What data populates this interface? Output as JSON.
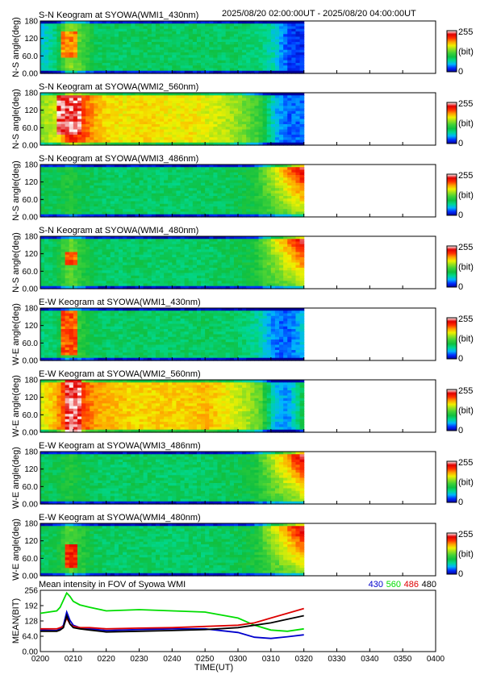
{
  "header": {
    "time_range": "2025/08/20 02:00:00UT - 2025/08/20 04:00:00UT"
  },
  "colors": {
    "colormap": [
      "#0000a0",
      "#0030ff",
      "#00b4ff",
      "#00d890",
      "#10c040",
      "#3ed038",
      "#90e020",
      "#f0f000",
      "#ffa000",
      "#ff3000",
      "#e00000",
      "#ffffff"
    ],
    "line_430": "#0000cc",
    "line_560": "#00dd00",
    "line_486": "#dd0000",
    "line_480": "#000000"
  },
  "chart_data": [
    {
      "type": "heatmap",
      "title": "S-N Keogram at SYOWA(WMI1_430nm)",
      "ylabel": "N-S angle(deg)",
      "yticks": [
        "0.00",
        "60.0",
        "120",
        "180"
      ],
      "ylim": [
        0,
        180
      ],
      "xlim": [
        "02:00",
        "04:00"
      ],
      "data_end": "03:20",
      "colorbar": {
        "max": "255",
        "unit": "(bit)",
        "min": "0"
      },
      "profile": [
        0.22,
        0.3,
        0.55,
        0.45,
        0.33,
        0.33,
        0.32,
        0.34,
        0.33,
        0.33,
        0.32,
        0.33,
        0.33,
        0.32,
        0.33,
        0.31,
        0.3,
        0.24,
        0.1,
        0.08
      ],
      "aurora": [
        {
          "start": "02:06",
          "end": "02:11",
          "lat_min": 50,
          "lat_max": 140,
          "level": 0.8
        }
      ],
      "twilight": 0
    },
    {
      "type": "heatmap",
      "title": "S-N Keogram at SYOWA(WMI2_560nm)",
      "ylabel": "N-S angle(deg)",
      "yticks": [
        "0.00",
        "60.0",
        "120",
        "180"
      ],
      "ylim": [
        0,
        180
      ],
      "xlim": [
        "02:00",
        "04:00"
      ],
      "data_end": "03:20",
      "colorbar": {
        "max": "255",
        "unit": "(bit)",
        "min": "0"
      },
      "profile": [
        0.55,
        0.6,
        0.85,
        0.8,
        0.7,
        0.66,
        0.64,
        0.66,
        0.66,
        0.64,
        0.64,
        0.65,
        0.62,
        0.6,
        0.56,
        0.5,
        0.42,
        0.2,
        0.12,
        0.14
      ],
      "aurora": [
        {
          "start": "02:05",
          "end": "02:13",
          "lat_min": 40,
          "lat_max": 170,
          "level": 1.0
        }
      ],
      "twilight": 0
    },
    {
      "type": "heatmap",
      "title": "S-N Keogram at SYOWA(WMI3_486nm)",
      "ylabel": "N-S angle(deg)",
      "yticks": [
        "0.00",
        "60.0",
        "120",
        "180"
      ],
      "ylim": [
        0,
        180
      ],
      "xlim": [
        "02:00",
        "04:00"
      ],
      "data_end": "03:20",
      "colorbar": {
        "max": "255",
        "unit": "(bit)",
        "min": "0"
      },
      "profile": [
        0.34,
        0.34,
        0.4,
        0.35,
        0.33,
        0.32,
        0.32,
        0.33,
        0.32,
        0.32,
        0.32,
        0.32,
        0.33,
        0.33,
        0.34,
        0.36,
        0.4,
        0.44,
        0.48,
        0.52
      ],
      "aurora": [],
      "twilight": 1
    },
    {
      "type": "heatmap",
      "title": "S-N Keogram at SYOWA(WMI4_480nm)",
      "ylabel": "N-S angle(deg)",
      "yticks": [
        "0.00",
        "60.0",
        "120",
        "180"
      ],
      "ylim": [
        0,
        180
      ],
      "xlim": [
        "02:00",
        "04:00"
      ],
      "data_end": "03:20",
      "colorbar": {
        "max": "255",
        "unit": "(bit)",
        "min": "0"
      },
      "profile": [
        0.32,
        0.34,
        0.5,
        0.4,
        0.33,
        0.32,
        0.32,
        0.33,
        0.32,
        0.32,
        0.32,
        0.32,
        0.32,
        0.33,
        0.34,
        0.36,
        0.4,
        0.44,
        0.48,
        0.52
      ],
      "aurora": [
        {
          "start": "02:07",
          "end": "02:11",
          "lat_min": 80,
          "lat_max": 130,
          "level": 0.85
        }
      ],
      "twilight": 1
    },
    {
      "type": "heatmap",
      "title": "E-W Keogram at SYOWA(WMI1_430nm)",
      "ylabel": "W-E angle(deg)",
      "yticks": [
        "0.00",
        "60.0",
        "120",
        "180"
      ],
      "ylim": [
        0,
        180
      ],
      "xlim": [
        "02:00",
        "04:00"
      ],
      "data_end": "03:20",
      "colorbar": {
        "max": "255",
        "unit": "(bit)",
        "min": "0"
      },
      "profile": [
        0.3,
        0.32,
        0.45,
        0.4,
        0.33,
        0.32,
        0.32,
        0.33,
        0.32,
        0.32,
        0.32,
        0.32,
        0.33,
        0.32,
        0.32,
        0.3,
        0.26,
        0.14,
        0.12,
        0.2
      ],
      "aurora": [
        {
          "start": "02:06",
          "end": "02:11",
          "lat_min": 20,
          "lat_max": 170,
          "level": 0.85
        }
      ],
      "twilight": 0
    },
    {
      "type": "heatmap",
      "title": "E-W Keogram at SYOWA(WMI2_560nm)",
      "ylabel": "W-E angle(deg)",
      "yticks": [
        "0.00",
        "60.0",
        "120",
        "180"
      ],
      "ylim": [
        0,
        180
      ],
      "xlim": [
        "02:00",
        "04:00"
      ],
      "data_end": "03:20",
      "colorbar": {
        "max": "255",
        "unit": "(bit)",
        "min": "0"
      },
      "profile": [
        0.62,
        0.7,
        0.9,
        0.8,
        0.72,
        0.7,
        0.68,
        0.66,
        0.67,
        0.68,
        0.67,
        0.68,
        0.7,
        0.66,
        0.62,
        0.56,
        0.48,
        0.2,
        0.16,
        0.34
      ],
      "aurora": [
        {
          "start": "02:07",
          "end": "02:13",
          "lat_min": 0,
          "lat_max": 180,
          "level": 1.0
        }
      ],
      "twilight": 0
    },
    {
      "type": "heatmap",
      "title": "E-W Keogram at SYOWA(WMI3_486nm)",
      "ylabel": "W-E angle(deg)",
      "yticks": [
        "0.00",
        "60.0",
        "120",
        "180"
      ],
      "ylim": [
        0,
        180
      ],
      "xlim": [
        "02:00",
        "04:00"
      ],
      "data_end": "03:20",
      "colorbar": {
        "max": "255",
        "unit": "(bit)",
        "min": "0"
      },
      "profile": [
        0.34,
        0.34,
        0.4,
        0.35,
        0.33,
        0.32,
        0.32,
        0.33,
        0.32,
        0.32,
        0.32,
        0.32,
        0.33,
        0.33,
        0.34,
        0.36,
        0.4,
        0.44,
        0.48,
        0.52
      ],
      "aurora": [],
      "twilight": 1
    },
    {
      "type": "heatmap",
      "title": "E-W Keogram at SYOWA(WMI4_480nm)",
      "ylabel": "W-E angle(deg)",
      "yticks": [
        "0.00",
        "60.0",
        "120",
        "180"
      ],
      "ylim": [
        0,
        180
      ],
      "xlim": [
        "02:00",
        "04:00"
      ],
      "data_end": "03:20",
      "colorbar": {
        "max": "255",
        "unit": "(bit)",
        "min": "0"
      },
      "profile": [
        0.33,
        0.35,
        0.48,
        0.4,
        0.33,
        0.32,
        0.32,
        0.33,
        0.32,
        0.32,
        0.32,
        0.32,
        0.32,
        0.33,
        0.34,
        0.36,
        0.4,
        0.44,
        0.48,
        0.52
      ],
      "aurora": [
        {
          "start": "02:07",
          "end": "02:11",
          "lat_min": 30,
          "lat_max": 110,
          "level": 0.9
        }
      ],
      "twilight": 1
    },
    {
      "type": "line",
      "title": "Mean intensity in FOV of Syowa WMI",
      "xlabel": "TIME(UT)",
      "ylabel": "MEAN(BIT)",
      "xlim": [
        "02:00",
        "04:00"
      ],
      "ylim": [
        0,
        256
      ],
      "yticks": [
        "0.00",
        "64.0",
        "128",
        "192",
        "256"
      ],
      "xticks": [
        "0200",
        "0210",
        "0220",
        "0230",
        "0240",
        "0250",
        "0300",
        "0310",
        "0320",
        "0330",
        "0340",
        "0350",
        "0400"
      ],
      "x": [
        "02:00",
        "02:05",
        "02:06",
        "02:07",
        "02:08",
        "02:09",
        "02:10",
        "02:12",
        "02:15",
        "02:20",
        "02:30",
        "02:40",
        "02:50",
        "03:00",
        "03:05",
        "03:10",
        "03:15",
        "03:20"
      ],
      "series": [
        {
          "name": "430",
          "values": [
            90,
            88,
            95,
            110,
            165,
            130,
            110,
            100,
            95,
            88,
            92,
            95,
            95,
            80,
            60,
            55,
            62,
            70
          ]
        },
        {
          "name": "560",
          "values": [
            160,
            170,
            185,
            215,
            245,
            230,
            210,
            195,
            185,
            170,
            175,
            170,
            165,
            140,
            110,
            90,
            85,
            95
          ]
        },
        {
          "name": "486",
          "values": [
            95,
            95,
            100,
            105,
            140,
            115,
            105,
            100,
            100,
            95,
            98,
            100,
            105,
            110,
            120,
            140,
            160,
            180
          ]
        },
        {
          "name": "480",
          "values": [
            85,
            85,
            90,
            100,
            150,
            115,
            100,
            95,
            90,
            82,
            85,
            88,
            92,
            100,
            110,
            120,
            135,
            150
          ]
        }
      ]
    }
  ]
}
